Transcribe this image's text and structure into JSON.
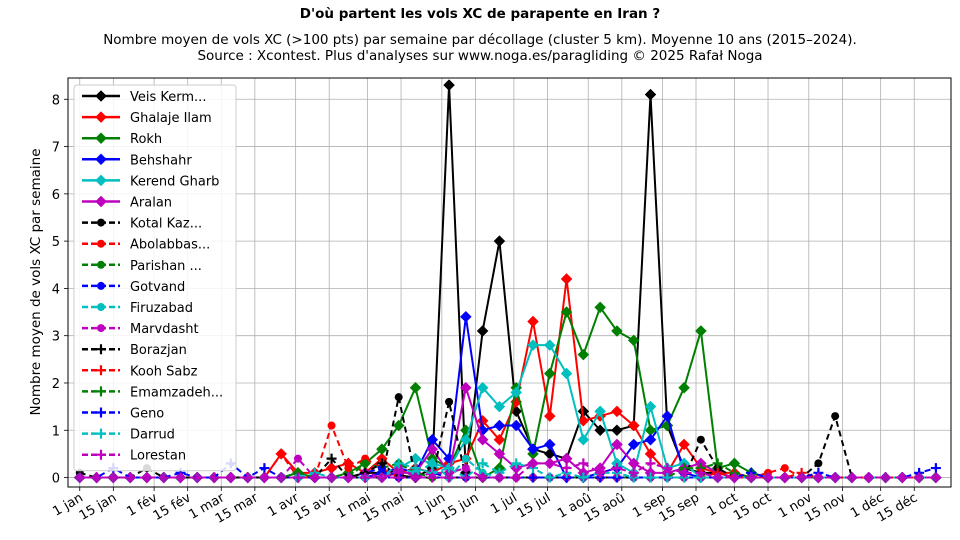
{
  "chart_data": {
    "type": "line",
    "title": "D'où partent les vols XC de parapente en Iran ?",
    "subtitle_lines": [
      "Nombre moyen de vols XC (>100 pts) par semaine par décollage (cluster 5 km). Moyenne 10 ans (2015–2024).",
      "Source : Xcontest. Plus d'analyses sur www.noga.es/paragliding © 2025 Rafał Noga"
    ],
    "ylabel": "Nombre moyen de vols XC par semaine",
    "xlabel": "",
    "x_unit": "week",
    "xlim": [
      -0.7,
      51.9
    ],
    "ylim": [
      -0.2,
      8.45
    ],
    "yticks": [
      0,
      1,
      2,
      3,
      4,
      5,
      6,
      7,
      8
    ],
    "xticks": [
      {
        "label": "1 jan",
        "week": 0
      },
      {
        "label": "15 jan",
        "week": 2
      },
      {
        "label": "1 fév",
        "week": 4.43
      },
      {
        "label": "15 fév",
        "week": 6.43
      },
      {
        "label": "1 mar",
        "week": 8.43
      },
      {
        "label": "15 mar",
        "week": 10.43
      },
      {
        "label": "1 avr",
        "week": 12.86
      },
      {
        "label": "15 avr",
        "week": 14.86
      },
      {
        "label": "1 mai",
        "week": 17.14
      },
      {
        "label": "15 mai",
        "week": 19.14
      },
      {
        "label": "1 jun",
        "week": 21.57
      },
      {
        "label": "15 jun",
        "week": 23.57
      },
      {
        "label": "1 jul",
        "week": 25.86
      },
      {
        "label": "15 jul",
        "week": 27.86
      },
      {
        "label": "1 aoû",
        "week": 30.29
      },
      {
        "label": "15 aoû",
        "week": 32.29
      },
      {
        "label": "1 sep",
        "week": 34.71
      },
      {
        "label": "15 sep",
        "week": 36.71
      },
      {
        "label": "1 oct",
        "week": 39
      },
      {
        "label": "15 oct",
        "week": 41
      },
      {
        "label": "1 nov",
        "week": 43.43
      },
      {
        "label": "15 nov",
        "week": 45.43
      },
      {
        "label": "1 déc",
        "week": 47.71
      },
      {
        "label": "15 déc",
        "week": 49.71
      }
    ],
    "grid": true,
    "legend_position": "upper-left",
    "weeks": [
      0,
      1,
      2,
      3,
      4,
      5,
      6,
      7,
      8,
      9,
      10,
      11,
      12,
      13,
      14,
      15,
      16,
      17,
      18,
      19,
      20,
      21,
      22,
      23,
      24,
      25,
      26,
      27,
      28,
      29,
      30,
      31,
      32,
      33,
      34,
      35,
      36,
      37,
      38,
      39,
      40,
      41,
      42,
      43,
      44,
      45,
      46,
      47,
      48,
      49,
      50,
      51
    ],
    "series": [
      {
        "name": "Veis Kerm...",
        "color": "#000000",
        "style": "solid",
        "marker": "diamond",
        "values": [
          0,
          0,
          0,
          0,
          0,
          0,
          0,
          0,
          0,
          0,
          0,
          0,
          0,
          0,
          0,
          0,
          0,
          0.1,
          0.1,
          0.05,
          0,
          0.2,
          8.3,
          0.1,
          3.1,
          5.0,
          1.4,
          0.6,
          0.5,
          0.4,
          1.4,
          1.0,
          1.0,
          1.1,
          8.1,
          1.1,
          0.2,
          0.1,
          0.1,
          0,
          0,
          0,
          0,
          0,
          0,
          0,
          0,
          0,
          0,
          0,
          0,
          0
        ]
      },
      {
        "name": "Ghalaje Ilam",
        "color": "#ff0000",
        "style": "solid",
        "marker": "diamond",
        "values": [
          0,
          0,
          0,
          0,
          0,
          0,
          0,
          0,
          0,
          0,
          0,
          0,
          0.5,
          0.1,
          0.1,
          0.2,
          0.3,
          0.1,
          0.4,
          0.1,
          0.2,
          0.1,
          0.3,
          0.4,
          1.2,
          0.8,
          1.6,
          3.3,
          1.3,
          4.2,
          1.2,
          1.3,
          1.4,
          1.1,
          0.5,
          0.1,
          0.7,
          0.2,
          0.1,
          0.1,
          0,
          0,
          0,
          0,
          0,
          0,
          0,
          0,
          0,
          0,
          0,
          0
        ]
      },
      {
        "name": "Rokh",
        "color": "#008000",
        "style": "solid",
        "marker": "diamond",
        "values": [
          0,
          0,
          0,
          0,
          0,
          0,
          0,
          0,
          0,
          0,
          0,
          0,
          0,
          0.1,
          0,
          0,
          0.1,
          0.3,
          0.6,
          1.1,
          1.9,
          0.4,
          0.2,
          1.0,
          0,
          0.2,
          1.9,
          0.5,
          2.2,
          3.5,
          2.6,
          3.6,
          3.1,
          2.9,
          1.0,
          1.1,
          1.9,
          3.1,
          0.2,
          0.3,
          0.1,
          0,
          0,
          0,
          0,
          0,
          0,
          0,
          0,
          0,
          0,
          0
        ]
      },
      {
        "name": "Behshahr",
        "color": "#0000ff",
        "style": "solid",
        "marker": "diamond",
        "values": [
          0,
          0,
          0,
          0,
          0,
          0,
          0,
          0,
          0,
          0,
          0,
          0,
          0,
          0,
          0,
          0,
          0,
          0,
          0.1,
          0.2,
          0.1,
          0.8,
          0.4,
          3.4,
          1.0,
          1.1,
          1.1,
          0.6,
          0.7,
          0,
          0,
          0.1,
          0.2,
          0.7,
          0.8,
          1.3,
          0.1,
          0,
          0,
          0,
          0,
          0,
          0,
          0,
          0,
          0,
          0,
          0,
          0,
          0,
          0,
          0
        ]
      },
      {
        "name": "Kerend Gharb",
        "color": "#00bfbf",
        "style": "solid",
        "marker": "diamond",
        "values": [
          0,
          0,
          0,
          0,
          0,
          0,
          0,
          0,
          0,
          0,
          0,
          0,
          0,
          0,
          0,
          0,
          0,
          0,
          0,
          0.2,
          0.4,
          0.3,
          0.2,
          0.8,
          1.9,
          1.5,
          1.8,
          2.8,
          2.8,
          2.2,
          0.8,
          1.4,
          0.3,
          0.1,
          1.5,
          0.2,
          0.3,
          0,
          0,
          0,
          0,
          0,
          0,
          0,
          0,
          0,
          0,
          0,
          0,
          0,
          0,
          0
        ]
      },
      {
        "name": "Aralan",
        "color": "#bf00bf",
        "style": "solid",
        "marker": "diamond",
        "values": [
          0,
          0,
          0,
          0,
          0,
          0,
          0,
          0,
          0,
          0,
          0,
          0,
          0,
          0,
          0,
          0,
          0,
          0,
          0,
          0.1,
          0.1,
          0.6,
          0.1,
          1.9,
          0.8,
          0.5,
          0.2,
          0.3,
          0.3,
          0.4,
          0.1,
          0.2,
          0.7,
          0.3,
          0.1,
          0.1,
          0.2,
          0.3,
          0.1,
          0,
          0,
          0,
          0,
          0,
          0,
          0,
          0,
          0,
          0,
          0,
          0,
          0
        ]
      },
      {
        "name": "Kotal Kaz...",
        "color": "#000000",
        "style": "dashed",
        "marker": "circle",
        "values": [
          0.1,
          0,
          0,
          0,
          0.2,
          0,
          0,
          0,
          0,
          0,
          0,
          0,
          0,
          0,
          0,
          0,
          0,
          0,
          0,
          1.7,
          0,
          0,
          1.6,
          0,
          0,
          0,
          0,
          0,
          0,
          0,
          0,
          0,
          0,
          0,
          0,
          0,
          0,
          0.8,
          0.2,
          0,
          0,
          0,
          0,
          0,
          0.3,
          1.3,
          0,
          0,
          0,
          0,
          0,
          0
        ]
      },
      {
        "name": "Abolabbas...",
        "color": "#ff0000",
        "style": "dashed",
        "marker": "circle",
        "values": [
          0,
          0,
          0,
          0,
          0,
          0,
          0,
          0,
          0,
          0,
          0,
          0,
          0.5,
          0,
          0,
          1.1,
          0.2,
          0.4,
          0.2,
          0,
          0,
          0,
          0,
          0,
          0,
          0,
          0,
          0,
          0,
          0,
          0,
          0,
          0,
          0,
          0,
          0,
          0,
          0,
          0,
          0,
          0,
          0.1,
          0.2,
          0,
          0,
          0,
          0,
          0,
          0,
          0,
          0,
          0
        ]
      },
      {
        "name": "Parishan ...",
        "color": "#008000",
        "style": "dashed",
        "marker": "circle",
        "values": [
          0,
          0,
          0,
          0,
          0,
          0,
          0,
          0,
          0,
          0,
          0,
          0,
          0,
          0.1,
          0,
          0,
          0,
          0.3,
          0.2,
          0.3,
          0.1,
          0,
          0,
          0,
          0,
          0,
          0,
          0,
          0,
          0,
          0,
          0,
          0,
          0,
          0,
          0,
          0,
          0,
          0,
          0,
          0,
          0,
          0,
          0,
          0,
          0,
          0,
          0,
          0,
          0,
          0,
          0
        ]
      },
      {
        "name": "Gotvand",
        "color": "#0000ff",
        "style": "dashed",
        "marker": "circle",
        "values": [
          0,
          0,
          0,
          0,
          0,
          0,
          0,
          0,
          0,
          0,
          0,
          0,
          0,
          0,
          0,
          0,
          0,
          0.1,
          0.2,
          0,
          0,
          0.1,
          0,
          0,
          0,
          0,
          0,
          0,
          0,
          0,
          0,
          0,
          0,
          0,
          0,
          0,
          0,
          0,
          0,
          0,
          0,
          0,
          0,
          0,
          0,
          0,
          0,
          0,
          0,
          0,
          0,
          0
        ]
      },
      {
        "name": "Firuzabad",
        "color": "#00bfbf",
        "style": "dashed",
        "marker": "circle",
        "values": [
          0,
          0,
          0,
          0,
          0,
          0,
          0,
          0,
          0,
          0,
          0,
          0,
          0,
          0,
          0,
          0,
          0,
          0,
          0,
          0.2,
          0.1,
          0.3,
          0,
          0.4,
          0.1,
          0,
          0,
          0,
          0,
          0,
          0,
          0,
          0,
          0,
          0,
          0,
          0,
          0,
          0,
          0,
          0,
          0,
          0,
          0,
          0,
          0,
          0,
          0,
          0,
          0,
          0,
          0
        ]
      },
      {
        "name": "Marvdasht",
        "color": "#bf00bf",
        "style": "dashed",
        "marker": "circle",
        "values": [
          0,
          0,
          0,
          0,
          0,
          0,
          0,
          0,
          0,
          0,
          0,
          0,
          0,
          0.4,
          0,
          0,
          0,
          0.1,
          0,
          0.2,
          0,
          0.1,
          0.1,
          0.2,
          0,
          0,
          0,
          0,
          0,
          0,
          0,
          0,
          0,
          0,
          0,
          0,
          0,
          0,
          0,
          0,
          0,
          0,
          0,
          0,
          0,
          0,
          0,
          0,
          0,
          0,
          0,
          0
        ]
      },
      {
        "name": "Borazjan",
        "color": "#000000",
        "style": "dashed",
        "marker": "plus",
        "values": [
          0,
          0,
          0,
          0,
          0,
          0,
          0,
          0,
          0,
          0,
          0,
          0,
          0,
          0,
          0,
          0.4,
          0,
          0.1,
          0.3,
          0,
          0,
          0,
          0,
          0,
          0,
          0,
          0,
          0,
          0,
          0,
          0,
          0,
          0,
          0,
          0,
          0,
          0,
          0,
          0,
          0,
          0,
          0,
          0,
          0,
          0,
          0,
          0,
          0,
          0,
          0,
          0,
          0
        ]
      },
      {
        "name": "Kooh Sabz",
        "color": "#ff0000",
        "style": "dashed",
        "marker": "plus",
        "values": [
          0,
          0,
          0,
          0,
          0,
          0,
          0,
          0,
          0,
          0,
          0,
          0,
          0,
          0,
          0,
          0,
          0,
          0,
          0,
          0,
          0,
          0,
          0,
          0,
          0,
          0,
          0,
          0,
          0,
          0,
          0,
          0,
          0,
          0,
          0,
          0,
          0,
          0,
          0.1,
          0,
          0,
          0,
          0,
          0.1,
          0,
          0,
          0,
          0,
          0,
          0,
          0,
          0
        ]
      },
      {
        "name": "Emamzadeh...",
        "color": "#008000",
        "style": "dashed",
        "marker": "plus",
        "values": [
          0,
          0,
          0,
          0,
          0,
          0,
          0,
          0,
          0,
          0,
          0,
          0,
          0,
          0,
          0,
          0,
          0,
          0,
          0,
          0,
          0,
          0,
          0,
          0,
          0,
          0,
          0,
          0,
          0,
          0,
          0,
          0,
          0,
          0,
          0,
          0,
          0.2,
          0.2,
          0.3,
          0.1,
          0,
          0,
          0,
          0,
          0,
          0,
          0,
          0,
          0,
          0,
          0,
          0
        ]
      },
      {
        "name": "Geno",
        "color": "#0000ff",
        "style": "dashed",
        "marker": "plus",
        "values": [
          0,
          0,
          0.2,
          0,
          0,
          0,
          0.1,
          0,
          0,
          0.3,
          0,
          0.2,
          0,
          0,
          0,
          0,
          0,
          0,
          0,
          0,
          0,
          0,
          0,
          0,
          0,
          0,
          0,
          0,
          0,
          0,
          0,
          0,
          0,
          0,
          0,
          0,
          0,
          0,
          0,
          0,
          0.1,
          0,
          0,
          0,
          0.1,
          0,
          0,
          0,
          0,
          0,
          0.1,
          0.2
        ]
      },
      {
        "name": "Darrud",
        "color": "#00bfbf",
        "style": "dashed",
        "marker": "plus",
        "values": [
          0,
          0,
          0,
          0,
          0,
          0,
          0,
          0,
          0,
          0,
          0,
          0,
          0,
          0,
          0.1,
          0,
          0,
          0,
          0,
          0.3,
          0.2,
          0.1,
          0.2,
          0,
          0.3,
          0.1,
          0.3,
          0.2,
          0,
          0.1,
          0,
          0.1,
          0.1,
          0,
          0,
          0,
          0,
          0,
          0,
          0,
          0,
          0,
          0,
          0,
          0,
          0,
          0,
          0,
          0,
          0,
          0,
          0
        ]
      },
      {
        "name": "Lorestan",
        "color": "#bf00bf",
        "style": "dashed",
        "marker": "plus",
        "values": [
          0,
          0,
          0,
          0,
          0,
          0,
          0,
          0,
          0,
          0,
          0,
          0,
          0,
          0,
          0,
          0,
          0,
          0,
          0,
          0,
          0,
          0,
          0,
          0,
          0,
          0,
          0,
          0.3,
          0.3,
          0.2,
          0.3,
          0.1,
          0.2,
          0.1,
          0.3,
          0.2,
          0.1,
          0.1,
          0,
          0,
          0,
          0,
          0,
          0,
          0,
          0,
          0,
          0,
          0,
          0,
          0,
          0
        ]
      }
    ]
  }
}
